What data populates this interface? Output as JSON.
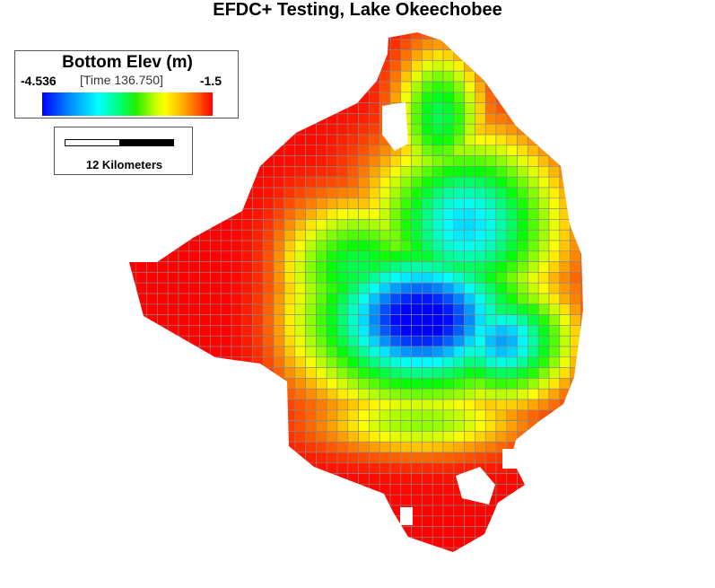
{
  "title": "EFDC+ Testing, Lake Okeechobee",
  "legend": {
    "title": "Bottom Elev (m)",
    "min_label": "-4.536",
    "max_label": "-1.5",
    "time_label": "[Time 136.750]",
    "min_value": -4.536,
    "max_value": -1.5,
    "colormap": [
      "#0000ff",
      "#00ffff",
      "#00ff00",
      "#ffff00",
      "#ff0000"
    ]
  },
  "scale_bar": {
    "label": "12 Kilometers",
    "segment_colors": [
      "#ffffff",
      "#000000"
    ]
  },
  "map": {
    "cell_edge_color": "#888888",
    "grid_cells": 11.8
  }
}
